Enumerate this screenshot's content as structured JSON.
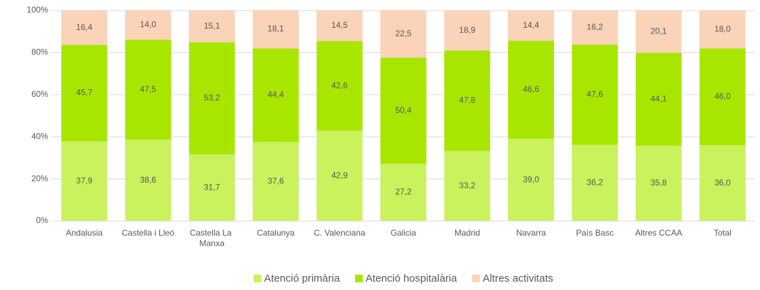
{
  "chart_data": {
    "type": "stacked_bar",
    "categories": [
      "Andalusia",
      "Castella i Lleó",
      "Castella La Manxa",
      "Catalunya",
      "C. Valenciana",
      "Galicia",
      "Madrid",
      "Navarra",
      "País Basc",
      "Altres CCAA",
      "Total"
    ],
    "series": [
      {
        "name": "Atenció primària",
        "color": "#c9f25c",
        "values": [
          37.9,
          38.6,
          31.7,
          37.6,
          42.9,
          27.2,
          33.2,
          39.0,
          36.2,
          35.8,
          36.0
        ],
        "value_labels": [
          "37,9",
          "38,6",
          "31,7",
          "37,6",
          "42,9",
          "27,2",
          "33,2",
          "39,0",
          "36,2",
          "35,8",
          "36,0"
        ]
      },
      {
        "name": "Atenció hospitalària",
        "color": "#a8e600",
        "values": [
          45.7,
          47.5,
          53.2,
          44.4,
          42.6,
          50.4,
          47.8,
          46.6,
          47.6,
          44.1,
          46.0
        ],
        "value_labels": [
          "45,7",
          "47,5",
          "53,2",
          "44,4",
          "42,6",
          "50,4",
          "47,8",
          "46,6",
          "47,6",
          "44,1",
          "46,0"
        ]
      },
      {
        "name": "Altres activitats",
        "color": "#fad3b8",
        "values": [
          16.4,
          14.0,
          15.1,
          18.1,
          14.5,
          22.5,
          18.9,
          14.4,
          16.2,
          20.1,
          18.0
        ],
        "value_labels": [
          "16,4",
          "14,0",
          "15,1",
          "18,1",
          "14,5",
          "22,5",
          "18,9",
          "14,4",
          "16,2",
          "20,1",
          "18,0"
        ]
      }
    ],
    "ylim": [
      0,
      100
    ],
    "yticks": [
      {
        "value": 0,
        "label": "0%"
      },
      {
        "value": 20,
        "label": "20%"
      },
      {
        "value": 40,
        "label": "40%"
      },
      {
        "value": 60,
        "label": "60%"
      },
      {
        "value": 80,
        "label": "80%"
      },
      {
        "value": 100,
        "label": "100%"
      }
    ],
    "grid": true,
    "legend": "bottom"
  }
}
